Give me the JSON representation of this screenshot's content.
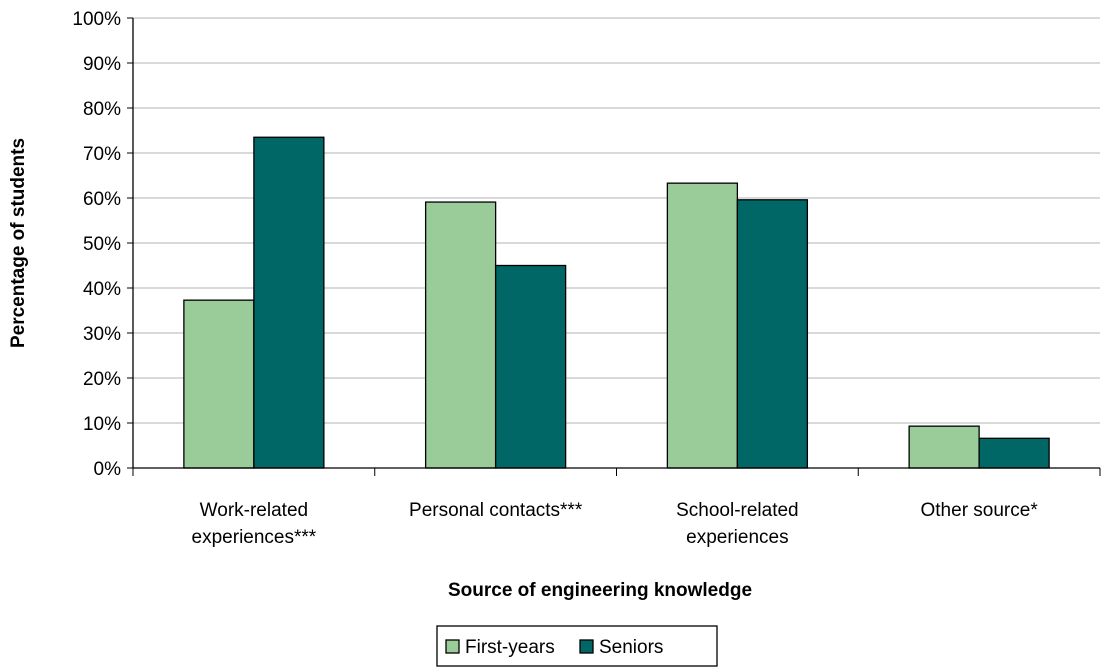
{
  "chart_data": {
    "type": "bar",
    "title": "",
    "xlabel": "Source of engineering knowledge",
    "ylabel": "Percentage of students",
    "ylim": [
      0,
      100
    ],
    "yticks": [
      "0%",
      "10%",
      "20%",
      "30%",
      "40%",
      "50%",
      "60%",
      "70%",
      "80%",
      "90%",
      "100%"
    ],
    "categories": [
      [
        "Work-related",
        "experiences***"
      ],
      [
        "Personal contacts***"
      ],
      [
        "School-related",
        "experiences"
      ],
      [
        "Other source*"
      ]
    ],
    "series": [
      {
        "name": "First-years",
        "color": "#99CC99",
        "values": [
          37.3,
          59.1,
          63.3,
          9.3
        ]
      },
      {
        "name": "Seniors",
        "color": "#006666",
        "values": [
          73.5,
          45.0,
          59.6,
          6.6
        ]
      }
    ],
    "grid": true,
    "legend": "bottom"
  }
}
